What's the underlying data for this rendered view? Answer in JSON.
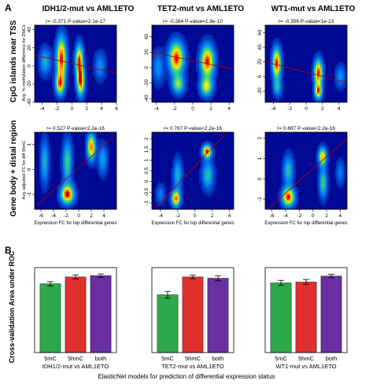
{
  "panel_labels": {
    "a": "A",
    "b": "B"
  },
  "row_labels": {
    "top": "CpG islands near TSS",
    "bottom": "Gene body + distal region"
  },
  "column_titles": [
    "IDH1/2-mut vs AML1ETO",
    "TET2-mut vs AML1ETO",
    "WT1-mut vs AML1ETO"
  ],
  "axis_titles": {
    "top_y": "Avg. % methylation difference for DMCs",
    "bottom_y": "Avg. adjusted FC for diff 5hmC",
    "bottom_x": "Expression FC for top differential genes",
    "bar_y": "Cross-validation Area under ROC",
    "bar_x": "ElasticNet models for prediction of differential expression status"
  },
  "chart_data": [
    {
      "type": "heatmap",
      "panel": "A",
      "row": "top",
      "column": 0,
      "stats": "r= -0.371   P-value=2.1e-17",
      "xlim": [
        -5,
        6
      ],
      "ylim": [
        -40,
        45
      ],
      "xticks": [
        -4,
        -2,
        0,
        2,
        4,
        6
      ],
      "yticks": [
        -40,
        -20,
        0,
        20,
        40
      ],
      "regression": {
        "x": [
          -5,
          6
        ],
        "y": [
          12,
          -8
        ]
      },
      "density_peaks": [
        {
          "x": -1.4,
          "y": 8,
          "sx": 0.45,
          "sy": 16,
          "w": 1.0
        },
        {
          "x": -1.6,
          "y": -20,
          "sx": 0.4,
          "sy": 8,
          "w": 0.8
        },
        {
          "x": 1.0,
          "y": 5,
          "sx": 0.35,
          "sy": 12,
          "w": 1.0
        },
        {
          "x": 1.2,
          "y": -18,
          "sx": 0.35,
          "sy": 10,
          "w": 0.9
        },
        {
          "x": -3.6,
          "y": 5,
          "sx": 0.5,
          "sy": 10,
          "w": 0.4
        },
        {
          "x": 3.8,
          "y": 0,
          "sx": 0.5,
          "sy": 10,
          "w": 0.3
        }
      ]
    },
    {
      "type": "heatmap",
      "panel": "A",
      "row": "top",
      "column": 1,
      "stats": "r= -0.284   P-value=1.9e-10",
      "xlim": [
        -4.5,
        4.5
      ],
      "ylim": [
        -45,
        55
      ],
      "xticks": [
        -4,
        -2,
        0,
        2,
        4
      ],
      "yticks": [
        -40,
        -20,
        0,
        20,
        40
      ],
      "regression": {
        "x": [
          -4.5,
          4.5
        ],
        "y": [
          20,
          -2
        ]
      },
      "density_peaks": [
        {
          "x": -1.8,
          "y": 12,
          "sx": 0.55,
          "sy": 14,
          "w": 1.0
        },
        {
          "x": 1.6,
          "y": 8,
          "sx": 0.5,
          "sy": 14,
          "w": 1.0
        },
        {
          "x": -1.6,
          "y": -22,
          "sx": 0.45,
          "sy": 8,
          "w": 0.6
        },
        {
          "x": 1.5,
          "y": -25,
          "sx": 0.45,
          "sy": 8,
          "w": 0.7
        },
        {
          "x": -3.8,
          "y": 0,
          "sx": 0.4,
          "sy": 14,
          "w": 0.3
        }
      ]
    },
    {
      "type": "heatmap",
      "panel": "A",
      "row": "top",
      "column": 2,
      "stats": "r= -0.356   P-value=1e-13",
      "xlim": [
        -5,
        5
      ],
      "ylim": [
        -35,
        70
      ],
      "xticks": [
        -4,
        -2,
        0,
        2,
        4
      ],
      "yticks": [
        -20,
        0,
        20,
        40,
        60
      ],
      "regression": {
        "x": [
          -5,
          5
        ],
        "y": [
          20,
          -8
        ]
      },
      "density_peaks": [
        {
          "x": -3.6,
          "y": 18,
          "sx": 0.35,
          "sy": 14,
          "w": 1.0
        },
        {
          "x": 1.5,
          "y": 5,
          "sx": 0.35,
          "sy": 12,
          "w": 1.0
        },
        {
          "x": 1.5,
          "y": -20,
          "sx": 0.3,
          "sy": 7,
          "w": 0.9
        },
        {
          "x": -3.5,
          "y": -15,
          "sx": 0.35,
          "sy": 8,
          "w": 0.4
        },
        {
          "x": 4.2,
          "y": 0,
          "sx": 0.4,
          "sy": 10,
          "w": 0.3
        }
      ]
    },
    {
      "type": "heatmap",
      "panel": "A",
      "row": "bottom",
      "column": 0,
      "stats": "r= 0.527   P-value<2.2e-16",
      "xlim": [
        -7,
        6
      ],
      "ylim": [
        -1.6,
        1.5
      ],
      "xticks": [
        -6,
        -4,
        -2,
        0,
        2,
        4
      ],
      "yticks": [
        -1,
        0,
        1
      ],
      "xlabel": "Expression FC for top differential genes",
      "regression": {
        "x": [
          -6.5,
          5.5
        ],
        "y": [
          -1.4,
          1.3
        ]
      },
      "density_peaks": [
        {
          "x": -1.8,
          "y": -1.0,
          "sx": 0.7,
          "sy": 0.25,
          "w": 1.0
        },
        {
          "x": -1.8,
          "y": 0.3,
          "sx": 0.5,
          "sy": 0.6,
          "w": 0.5
        },
        {
          "x": 2.0,
          "y": 0.9,
          "sx": 0.45,
          "sy": 0.35,
          "w": 0.9
        },
        {
          "x": -5.4,
          "y": 0.3,
          "sx": 0.45,
          "sy": 0.6,
          "w": 0.4
        },
        {
          "x": 3.8,
          "y": 0.4,
          "sx": 0.5,
          "sy": 0.4,
          "w": 0.35
        }
      ]
    },
    {
      "type": "heatmap",
      "panel": "A",
      "row": "bottom",
      "column": 1,
      "stats": "r= 0.767   P-value<2.2e-16",
      "xlim": [
        -5,
        4.5
      ],
      "ylim": [
        -1.3,
        2.3
      ],
      "xticks": [
        -4,
        -2,
        0,
        2,
        4
      ],
      "yticks": [
        -1.0,
        -0.5,
        0.0,
        0.5,
        1.0,
        1.5,
        2.0
      ],
      "xlabel": "Expression FC for top differential genes",
      "regression": {
        "x": [
          -4.5,
          3.5
        ],
        "y": [
          -1.2,
          2.2
        ]
      },
      "density_peaks": [
        {
          "x": 1.4,
          "y": 1.4,
          "sx": 0.35,
          "sy": 0.2,
          "w": 1.0
        },
        {
          "x": -2.2,
          "y": -0.8,
          "sx": 0.35,
          "sy": 0.25,
          "w": 0.9
        },
        {
          "x": -2.0,
          "y": 0.3,
          "sx": 0.35,
          "sy": 0.5,
          "w": 0.4
        },
        {
          "x": 1.5,
          "y": 0.3,
          "sx": 0.45,
          "sy": 0.45,
          "w": 0.45
        },
        {
          "x": -4.0,
          "y": -0.6,
          "sx": 0.35,
          "sy": 0.3,
          "w": 0.25
        }
      ]
    },
    {
      "type": "heatmap",
      "panel": "A",
      "row": "bottom",
      "column": 2,
      "stats": "r= 0.667   P-value<2.2e-16",
      "xlim": [
        -7,
        5
      ],
      "ylim": [
        -1.5,
        2.3
      ],
      "xticks": [
        -6,
        -4,
        -2,
        0,
        2,
        4
      ],
      "yticks": [
        -1,
        0,
        1,
        2
      ],
      "xlabel": "Expression FC for top differential genes",
      "regression": {
        "x": [
          -7,
          5
        ],
        "y": [
          -1.6,
          2.0
        ]
      },
      "density_peaks": [
        {
          "x": -3.6,
          "y": -0.9,
          "sx": 0.6,
          "sy": 0.3,
          "w": 1.0
        },
        {
          "x": 1.4,
          "y": 1.1,
          "sx": 0.4,
          "sy": 0.3,
          "w": 0.8
        },
        {
          "x": -3.6,
          "y": 0.4,
          "sx": 0.5,
          "sy": 0.5,
          "w": 0.45
        },
        {
          "x": 1.5,
          "y": -0.2,
          "sx": 0.4,
          "sy": 0.5,
          "w": 0.5
        },
        {
          "x": 4.0,
          "y": 0.3,
          "sx": 0.4,
          "sy": 0.4,
          "w": 0.25
        }
      ]
    },
    {
      "type": "bar",
      "panel": "B",
      "column": 0,
      "title": "IDH1/2-mut vs AML1ETO",
      "categories": [
        "5mC",
        "5hmC",
        "both"
      ],
      "values": [
        0.81,
        0.89,
        0.905
      ],
      "errors": [
        0.025,
        0.025,
        0.02
      ],
      "ylim": [
        0,
        1
      ],
      "colors": [
        "#2da84a",
        "#e0302e",
        "#6a2fa0"
      ]
    },
    {
      "type": "bar",
      "panel": "B",
      "column": 1,
      "title": "TET2-mut vs AML1ETO",
      "categories": [
        "5mC",
        "5hmC",
        "both"
      ],
      "values": [
        0.68,
        0.89,
        0.875
      ],
      "errors": [
        0.04,
        0.02,
        0.03
      ],
      "ylim": [
        0,
        1
      ],
      "colors": [
        "#2da84a",
        "#e0302e",
        "#6a2fa0"
      ]
    },
    {
      "type": "bar",
      "panel": "B",
      "column": 2,
      "title": "WT1-mut vs AML1ETO",
      "categories": [
        "5mC",
        "5hmC",
        "both"
      ],
      "values": [
        0.82,
        0.83,
        0.9
      ],
      "errors": [
        0.03,
        0.03,
        0.02
      ],
      "ylim": [
        0,
        1
      ],
      "colors": [
        "#2da84a",
        "#e0302e",
        "#6a2fa0"
      ]
    }
  ]
}
